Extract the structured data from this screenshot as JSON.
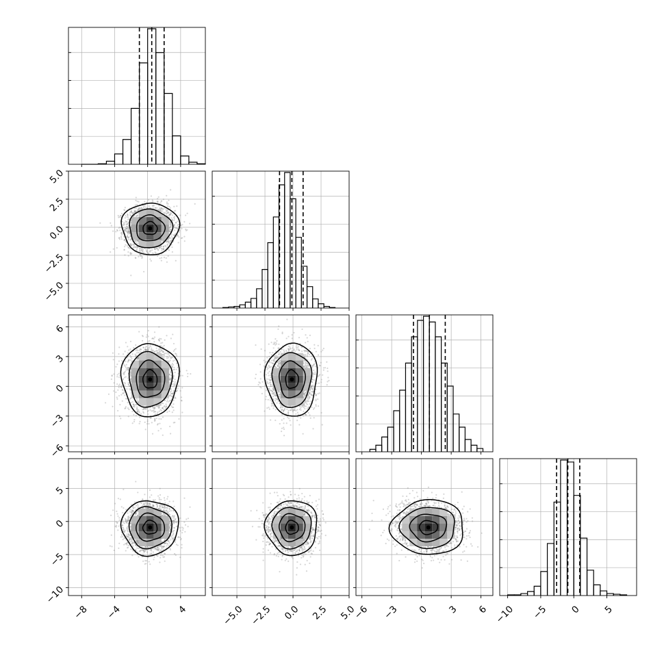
{
  "chart_data": {
    "type": "corner",
    "title": "",
    "parameters": [
      {
        "index": 0,
        "xlim": [
          -9.6,
          7.0
        ],
        "ticks": [
          -8,
          -4,
          0,
          4
        ],
        "tick_labels": [
          "−8",
          "−4",
          "0",
          "4"
        ],
        "median": 0.5,
        "quantiles": [
          -1.0,
          0.5,
          2.0
        ],
        "hist_edges": [
          -8,
          -7,
          -6,
          -5,
          -4,
          -3,
          -2,
          -1,
          0,
          1,
          2,
          3,
          4,
          5,
          6,
          7
        ],
        "hist_counts": [
          0,
          0,
          1,
          6,
          20,
          48,
          108,
          196,
          262,
          216,
          137,
          55,
          16,
          4,
          1
        ],
        "center": 0.3,
        "sigma": 1.5
      },
      {
        "index": 1,
        "xlim": [
          -7.2,
          5.0
        ],
        "ticks": [
          -5.0,
          -2.5,
          0.0,
          2.5,
          5.0
        ],
        "tick_labels": [
          "−5.0",
          "−2.5",
          "0.0",
          "2.5",
          "5.0"
        ],
        "median": -0.1,
        "quantiles": [
          -1.2,
          -0.1,
          0.9
        ],
        "hist_edges": [
          -6.25,
          -5.75,
          -5.25,
          -4.75,
          -4.25,
          -3.75,
          -3.25,
          -2.75,
          -2.25,
          -1.75,
          -1.25,
          -0.75,
          -0.25,
          0.25,
          0.75,
          1.25,
          1.75,
          2.25,
          2.75,
          3.25,
          3.75
        ],
        "hist_counts": [
          1,
          2,
          3,
          6,
          11,
          18,
          36,
          72,
          122,
          170,
          230,
          253,
          204,
          132,
          78,
          40,
          17,
          8,
          3,
          1
        ],
        "center": -0.1,
        "sigma": 1.0
      },
      {
        "index": 2,
        "xlim": [
          -6.6,
          7.2
        ],
        "ticks": [
          -6,
          -3,
          0,
          3,
          6
        ],
        "tick_labels": [
          "−6",
          "−3",
          "0",
          "3",
          "6"
        ],
        "median": 0.8,
        "quantiles": [
          -0.8,
          0.8,
          2.4
        ],
        "hist_edges": [
          -5.2,
          -4.6,
          -4.0,
          -3.4,
          -2.8,
          -2.2,
          -1.6,
          -1.0,
          -0.4,
          0.2,
          0.8,
          1.4,
          2.0,
          2.6,
          3.2,
          3.8,
          4.4,
          5.0,
          5.6,
          6.2
        ],
        "hist_counts": [
          3,
          8,
          18,
          30,
          50,
          75,
          108,
          140,
          160,
          165,
          158,
          140,
          108,
          80,
          46,
          30,
          15,
          8,
          4
        ],
        "center": 0.7,
        "sigma": 1.6
      },
      {
        "index": 3,
        "xlim": [
          -11.2,
          9.5
        ],
        "ticks": [
          -10,
          -5,
          0,
          5
        ],
        "tick_labels": [
          "−10",
          "−5",
          "0",
          "5"
        ],
        "median": -0.9,
        "quantiles": [
          -2.6,
          -0.9,
          0.9
        ],
        "hist_edges": [
          -10,
          -9,
          -8,
          -7,
          -6,
          -5,
          -4,
          -3,
          -2,
          -1,
          0,
          1,
          2,
          3,
          4,
          5,
          6,
          7,
          8
        ],
        "hist_counts": [
          1,
          1,
          3,
          6,
          14,
          36,
          78,
          140,
          203,
          200,
          150,
          86,
          38,
          16,
          7,
          3,
          2,
          1
        ],
        "center": -0.9,
        "sigma": 1.8
      }
    ],
    "pairs": [
      {
        "x": 0,
        "y": 1,
        "correlation": 0.0
      },
      {
        "x": 0,
        "y": 2,
        "correlation": 0.0
      },
      {
        "x": 1,
        "y": 2,
        "correlation": 0.0
      },
      {
        "x": 0,
        "y": 3,
        "correlation": 0.0
      },
      {
        "x": 1,
        "y": 3,
        "correlation": 0.0
      },
      {
        "x": 2,
        "y": 3,
        "correlation": -0.05
      }
    ],
    "contour_levels_sigma": [
      0.5,
      1.0,
      1.5,
      2.0
    ],
    "grid": true,
    "legend": "none",
    "colors": {
      "line": "#000000",
      "points": "#8a8a8a",
      "grid": "#b0b0b0"
    }
  }
}
